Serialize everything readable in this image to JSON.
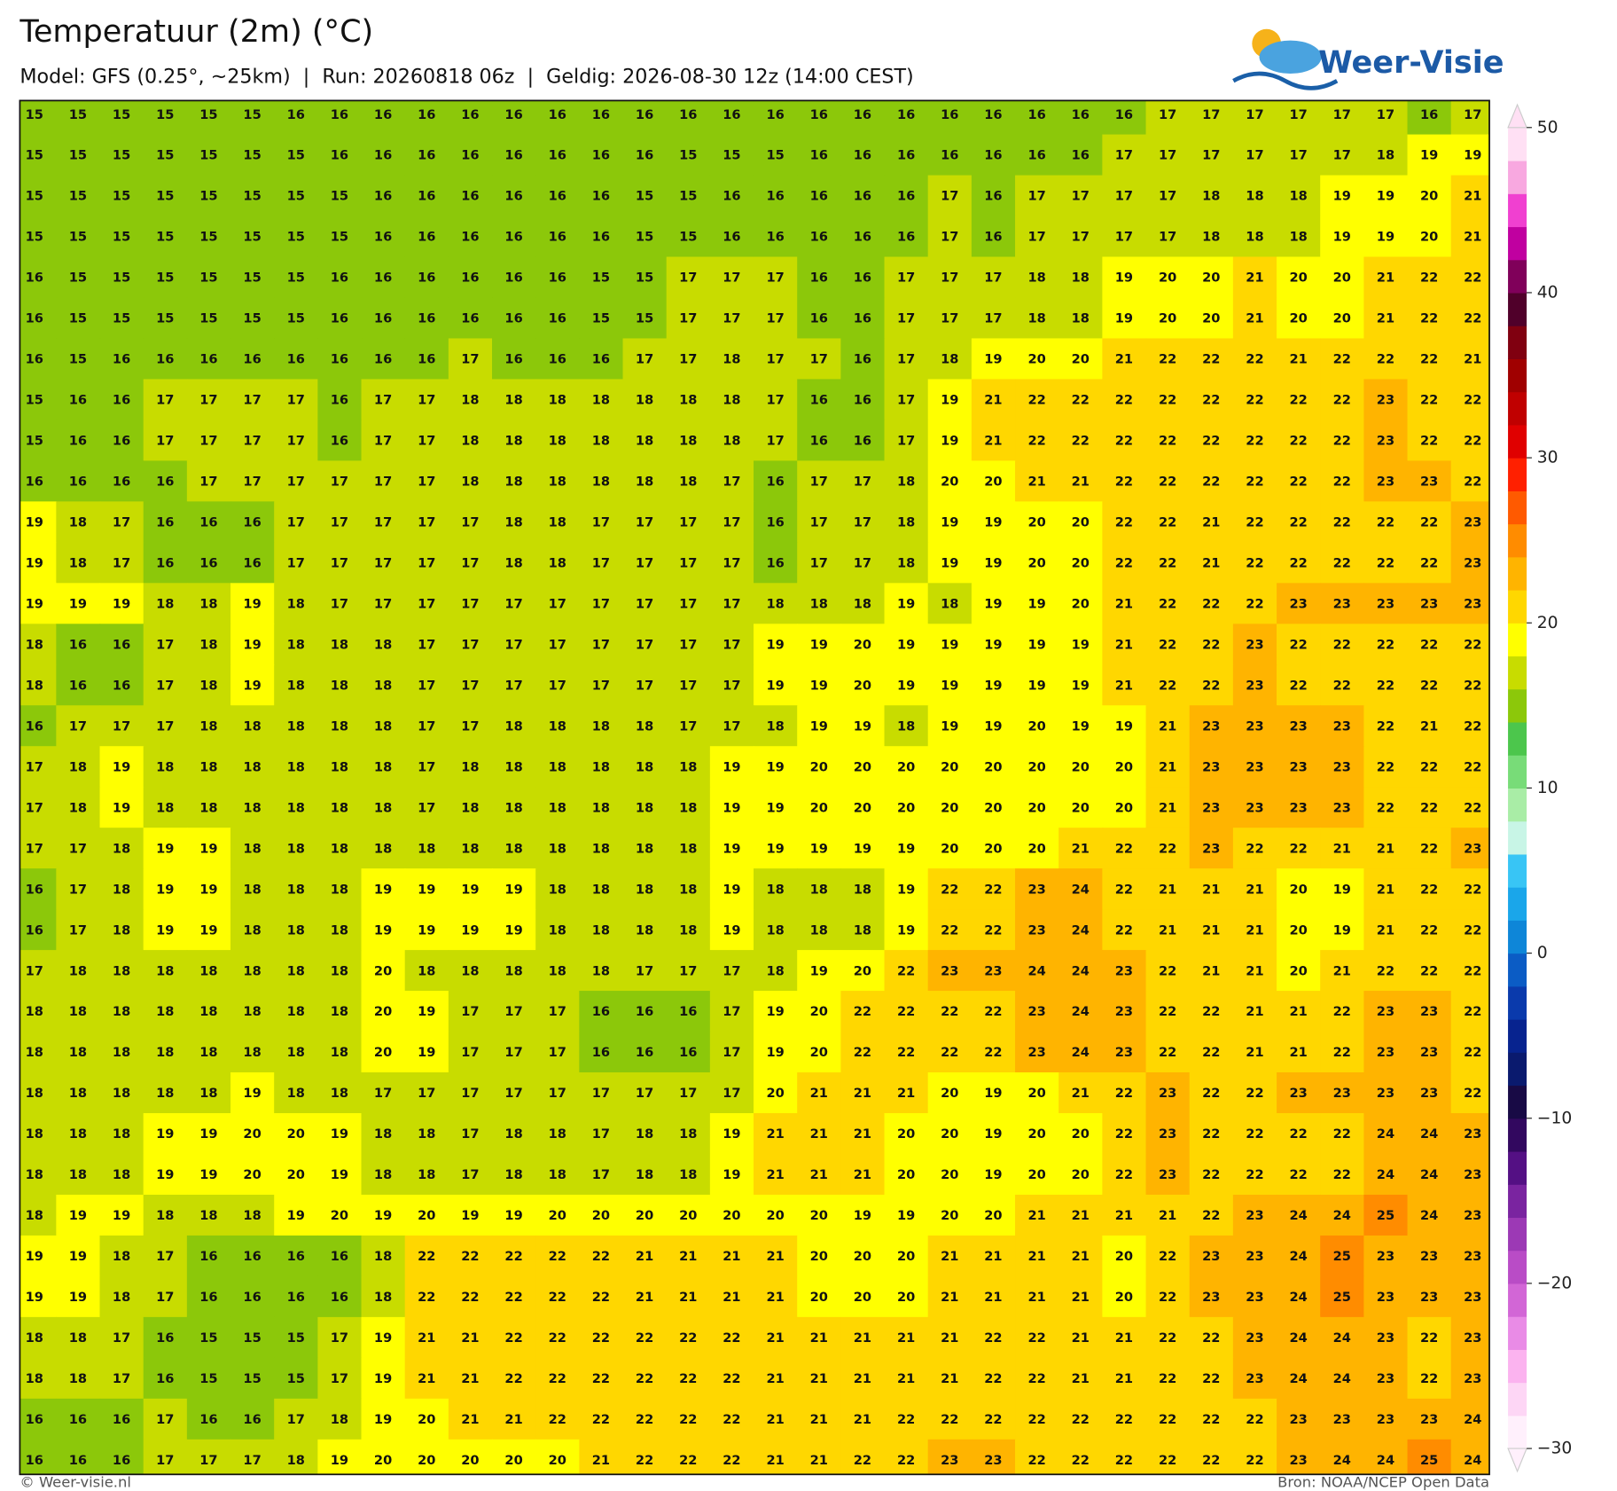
{
  "header": {
    "title": "Temperatuur (2m) (°C)",
    "subtitle": "Model: GFS (0.25°, ~25km)  |  Run: 20260818 06z  |  Geldig: 2026-08-30 12z (14:00 CEST)"
  },
  "logo": "Weer-Visie",
  "map": {
    "values": [
      [
        15,
        15,
        15,
        15,
        15,
        15,
        16,
        16,
        16,
        16,
        16,
        16,
        16,
        16,
        16,
        16,
        16,
        16,
        16,
        16,
        16,
        16,
        16,
        16,
        16,
        16,
        17,
        17,
        17,
        17,
        17,
        17,
        16,
        17
      ],
      [
        15,
        15,
        15,
        15,
        15,
        15,
        15,
        16,
        16,
        16,
        16,
        16,
        16,
        16,
        16,
        15,
        15,
        15,
        16,
        16,
        16,
        16,
        16,
        16,
        16,
        17,
        17,
        17,
        17,
        17,
        17,
        18,
        19,
        19
      ],
      [
        15,
        15,
        15,
        15,
        15,
        15,
        15,
        15,
        16,
        16,
        16,
        16,
        16,
        16,
        15,
        15,
        16,
        16,
        16,
        16,
        16,
        17,
        16,
        17,
        17,
        17,
        17,
        18,
        18,
        18,
        19,
        19,
        20,
        21
      ],
      [
        15,
        15,
        15,
        15,
        15,
        15,
        15,
        15,
        16,
        16,
        16,
        16,
        16,
        16,
        15,
        15,
        16,
        16,
        16,
        16,
        16,
        17,
        16,
        17,
        17,
        17,
        17,
        18,
        18,
        18,
        19,
        19,
        20,
        21
      ],
      [
        16,
        15,
        15,
        15,
        15,
        15,
        15,
        16,
        16,
        16,
        16,
        16,
        16,
        15,
        15,
        17,
        17,
        17,
        16,
        16,
        17,
        17,
        17,
        18,
        18,
        19,
        20,
        20,
        21,
        20,
        20,
        21,
        22,
        22
      ],
      [
        16,
        15,
        15,
        15,
        15,
        15,
        15,
        16,
        16,
        16,
        16,
        16,
        16,
        15,
        15,
        17,
        17,
        17,
        16,
        16,
        17,
        17,
        17,
        18,
        18,
        19,
        20,
        20,
        21,
        20,
        20,
        21,
        22,
        22
      ],
      [
        16,
        15,
        16,
        16,
        16,
        16,
        16,
        16,
        16,
        16,
        17,
        16,
        16,
        16,
        17,
        17,
        18,
        17,
        17,
        16,
        17,
        18,
        19,
        20,
        20,
        21,
        22,
        22,
        22,
        21,
        22,
        22,
        22,
        21
      ],
      [
        15,
        16,
        16,
        17,
        17,
        17,
        17,
        16,
        17,
        17,
        18,
        18,
        18,
        18,
        18,
        18,
        18,
        17,
        16,
        16,
        17,
        19,
        21,
        22,
        22,
        22,
        22,
        22,
        22,
        22,
        22,
        23,
        22,
        22
      ],
      [
        15,
        16,
        16,
        17,
        17,
        17,
        17,
        16,
        17,
        17,
        18,
        18,
        18,
        18,
        18,
        18,
        18,
        17,
        16,
        16,
        17,
        19,
        21,
        22,
        22,
        22,
        22,
        22,
        22,
        22,
        22,
        23,
        22,
        22
      ],
      [
        16,
        16,
        16,
        16,
        17,
        17,
        17,
        17,
        17,
        17,
        18,
        18,
        18,
        18,
        18,
        18,
        17,
        16,
        17,
        17,
        18,
        20,
        20,
        21,
        21,
        22,
        22,
        22,
        22,
        22,
        22,
        23,
        23,
        22
      ],
      [
        19,
        18,
        17,
        16,
        16,
        16,
        17,
        17,
        17,
        17,
        17,
        18,
        18,
        17,
        17,
        17,
        17,
        16,
        17,
        17,
        18,
        19,
        19,
        20,
        20,
        22,
        22,
        21,
        22,
        22,
        22,
        22,
        22,
        23
      ],
      [
        19,
        18,
        17,
        16,
        16,
        16,
        17,
        17,
        17,
        17,
        17,
        18,
        18,
        17,
        17,
        17,
        17,
        16,
        17,
        17,
        18,
        19,
        19,
        20,
        20,
        22,
        22,
        21,
        22,
        22,
        22,
        22,
        22,
        23
      ],
      [
        19,
        19,
        19,
        18,
        18,
        19,
        18,
        17,
        17,
        17,
        17,
        17,
        17,
        17,
        17,
        17,
        17,
        18,
        18,
        18,
        19,
        18,
        19,
        19,
        20,
        21,
        22,
        22,
        22,
        23,
        23,
        23,
        23,
        23
      ],
      [
        18,
        16,
        16,
        17,
        18,
        19,
        18,
        18,
        18,
        17,
        17,
        17,
        17,
        17,
        17,
        17,
        17,
        19,
        19,
        20,
        19,
        19,
        19,
        19,
        19,
        21,
        22,
        22,
        23,
        22,
        22,
        22,
        22,
        22
      ],
      [
        18,
        16,
        16,
        17,
        18,
        19,
        18,
        18,
        18,
        17,
        17,
        17,
        17,
        17,
        17,
        17,
        17,
        19,
        19,
        20,
        19,
        19,
        19,
        19,
        19,
        21,
        22,
        22,
        23,
        22,
        22,
        22,
        22,
        22
      ],
      [
        16,
        17,
        17,
        17,
        18,
        18,
        18,
        18,
        18,
        17,
        17,
        18,
        18,
        18,
        18,
        17,
        17,
        18,
        19,
        19,
        18,
        19,
        19,
        20,
        19,
        19,
        21,
        23,
        23,
        23,
        23,
        22,
        21,
        22
      ],
      [
        17,
        18,
        19,
        18,
        18,
        18,
        18,
        18,
        18,
        17,
        18,
        18,
        18,
        18,
        18,
        18,
        19,
        19,
        20,
        20,
        20,
        20,
        20,
        20,
        20,
        20,
        21,
        23,
        23,
        23,
        23,
        22,
        22,
        22
      ],
      [
        17,
        18,
        19,
        18,
        18,
        18,
        18,
        18,
        18,
        17,
        18,
        18,
        18,
        18,
        18,
        18,
        19,
        19,
        20,
        20,
        20,
        20,
        20,
        20,
        20,
        20,
        21,
        23,
        23,
        23,
        23,
        22,
        22,
        22
      ],
      [
        17,
        17,
        18,
        19,
        19,
        18,
        18,
        18,
        18,
        18,
        18,
        18,
        18,
        18,
        18,
        18,
        19,
        19,
        19,
        19,
        19,
        20,
        20,
        20,
        21,
        22,
        22,
        23,
        22,
        22,
        21,
        21,
        22,
        23
      ],
      [
        16,
        17,
        18,
        19,
        19,
        18,
        18,
        18,
        19,
        19,
        19,
        19,
        18,
        18,
        18,
        18,
        19,
        18,
        18,
        18,
        19,
        22,
        22,
        23,
        24,
        22,
        21,
        21,
        21,
        20,
        19,
        21,
        22,
        22
      ],
      [
        16,
        17,
        18,
        19,
        19,
        18,
        18,
        18,
        19,
        19,
        19,
        19,
        18,
        18,
        18,
        18,
        19,
        18,
        18,
        18,
        19,
        22,
        22,
        23,
        24,
        22,
        21,
        21,
        21,
        20,
        19,
        21,
        22,
        22
      ],
      [
        17,
        18,
        18,
        18,
        18,
        18,
        18,
        18,
        20,
        18,
        18,
        18,
        18,
        18,
        17,
        17,
        17,
        18,
        19,
        20,
        22,
        23,
        23,
        24,
        24,
        23,
        22,
        21,
        21,
        20,
        21,
        22,
        22,
        22
      ],
      [
        18,
        18,
        18,
        18,
        18,
        18,
        18,
        18,
        20,
        19,
        17,
        17,
        17,
        16,
        16,
        16,
        17,
        19,
        20,
        22,
        22,
        22,
        22,
        23,
        24,
        23,
        22,
        22,
        21,
        21,
        22,
        23,
        23,
        22
      ],
      [
        18,
        18,
        18,
        18,
        18,
        18,
        18,
        18,
        20,
        19,
        17,
        17,
        17,
        16,
        16,
        16,
        17,
        19,
        20,
        22,
        22,
        22,
        22,
        23,
        24,
        23,
        22,
        22,
        21,
        21,
        22,
        23,
        23,
        22
      ],
      [
        18,
        18,
        18,
        18,
        18,
        19,
        18,
        18,
        17,
        17,
        17,
        17,
        17,
        17,
        17,
        17,
        17,
        20,
        21,
        21,
        21,
        20,
        19,
        20,
        21,
        22,
        23,
        22,
        22,
        23,
        23,
        23,
        23,
        22
      ],
      [
        18,
        18,
        18,
        19,
        19,
        20,
        20,
        19,
        18,
        18,
        17,
        18,
        18,
        17,
        18,
        18,
        19,
        21,
        21,
        21,
        20,
        20,
        19,
        20,
        20,
        22,
        23,
        22,
        22,
        22,
        22,
        24,
        24,
        23
      ],
      [
        18,
        18,
        18,
        19,
        19,
        20,
        20,
        19,
        18,
        18,
        17,
        18,
        18,
        17,
        18,
        18,
        19,
        21,
        21,
        21,
        20,
        20,
        19,
        20,
        20,
        22,
        23,
        22,
        22,
        22,
        22,
        24,
        24,
        23
      ],
      [
        18,
        19,
        19,
        18,
        18,
        18,
        19,
        20,
        19,
        20,
        19,
        19,
        20,
        20,
        20,
        20,
        20,
        20,
        20,
        19,
        19,
        20,
        20,
        21,
        21,
        21,
        21,
        22,
        23,
        24,
        24,
        25,
        24,
        23
      ],
      [
        19,
        19,
        18,
        17,
        16,
        16,
        16,
        16,
        18,
        22,
        22,
        22,
        22,
        22,
        21,
        21,
        21,
        21,
        20,
        20,
        20,
        21,
        21,
        21,
        21,
        20,
        22,
        23,
        23,
        24,
        25,
        23,
        23,
        23
      ],
      [
        19,
        19,
        18,
        17,
        16,
        16,
        16,
        16,
        18,
        22,
        22,
        22,
        22,
        22,
        21,
        21,
        21,
        21,
        20,
        20,
        20,
        21,
        21,
        21,
        21,
        20,
        22,
        23,
        23,
        24,
        25,
        23,
        23,
        23
      ],
      [
        18,
        18,
        17,
        16,
        15,
        15,
        15,
        17,
        19,
        21,
        21,
        22,
        22,
        22,
        22,
        22,
        22,
        21,
        21,
        21,
        21,
        21,
        22,
        22,
        21,
        21,
        22,
        22,
        23,
        24,
        24,
        23,
        22,
        23
      ],
      [
        18,
        18,
        17,
        16,
        15,
        15,
        15,
        17,
        19,
        21,
        21,
        22,
        22,
        22,
        22,
        22,
        22,
        21,
        21,
        21,
        21,
        21,
        22,
        22,
        21,
        21,
        22,
        22,
        23,
        24,
        24,
        23,
        22,
        23
      ],
      [
        16,
        16,
        16,
        17,
        16,
        16,
        17,
        18,
        19,
        20,
        21,
        21,
        22,
        22,
        22,
        22,
        22,
        21,
        21,
        21,
        22,
        22,
        22,
        22,
        22,
        22,
        22,
        22,
        22,
        23,
        23,
        23,
        23,
        24
      ],
      [
        16,
        16,
        16,
        17,
        17,
        17,
        18,
        19,
        20,
        20,
        20,
        20,
        20,
        21,
        22,
        22,
        22,
        21,
        21,
        22,
        22,
        23,
        23,
        22,
        22,
        22,
        22,
        22,
        22,
        23,
        24,
        24,
        25,
        24
      ]
    ]
  },
  "colorbar": {
    "lim": [
      -30,
      50
    ],
    "ticks": [
      50,
      40,
      30,
      20,
      10,
      0,
      {
        "value": -10,
        "label": "−10"
      },
      {
        "value": -20,
        "label": "−20"
      },
      {
        "value": -30,
        "label": "−30"
      }
    ],
    "colors": [
      "#fff0fc",
      "#fdd6f5",
      "#fbb3ef",
      "#e98be6",
      "#d266d6",
      "#b94cc6",
      "#9c39b5",
      "#7a24a0",
      "#541084",
      "#32085f",
      "#180a45",
      "#0a1a6e",
      "#07238f",
      "#0a3aac",
      "#0b5cc5",
      "#0e86d8",
      "#1aa6ea",
      "#38c5f5",
      "#c8f5e6",
      "#a9eda6",
      "#78dc78",
      "#4cc64c",
      "#8cc80a",
      "#c8dc00",
      "#ffff00",
      "#ffd700",
      "#ffb400",
      "#ff8c00",
      "#ff5a00",
      "#ff2000",
      "#e00000",
      "#c00000",
      "#a00000",
      "#800010",
      "#50002a",
      "#80005a",
      "#c000a0",
      "#f040d0",
      "#f8a8e0",
      "#ffe0f4"
    ]
  },
  "footer": {
    "left": "© Weer-visie.nl",
    "right": "Bron: NOAA/NCEP Open Data"
  }
}
